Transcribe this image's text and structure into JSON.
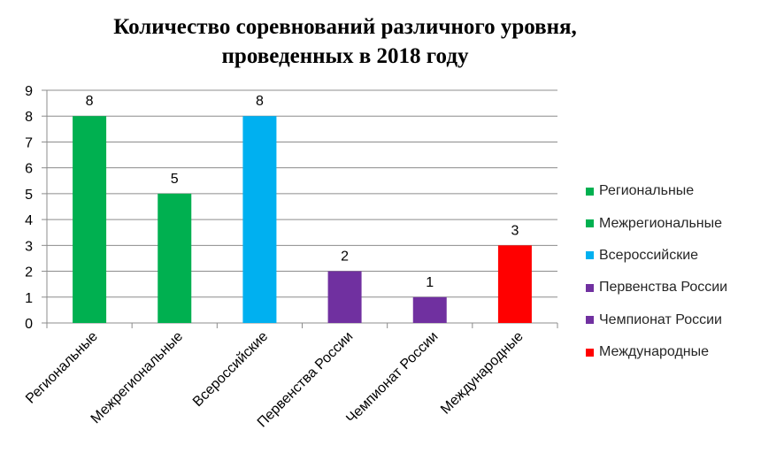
{
  "chart_data": {
    "type": "bar",
    "title": [
      "Количество соревнований различного уровня,",
      "проведенных в 2018 году"
    ],
    "categories": [
      "Региональные",
      "Межрегиональные",
      "Всероссийские",
      "Первенства России",
      "Чемпионат России",
      "Международные"
    ],
    "values": [
      8,
      5,
      8,
      2,
      1,
      3
    ],
    "colors": [
      "#00b050",
      "#00b050",
      "#00b0f0",
      "#7030a0",
      "#7030a0",
      "#ff0000"
    ],
    "ylim": [
      0,
      9
    ],
    "yticks": [
      0,
      1,
      2,
      3,
      4,
      5,
      6,
      7,
      8,
      9
    ],
    "grid": true,
    "legend_position": "right",
    "data_labels": true
  }
}
